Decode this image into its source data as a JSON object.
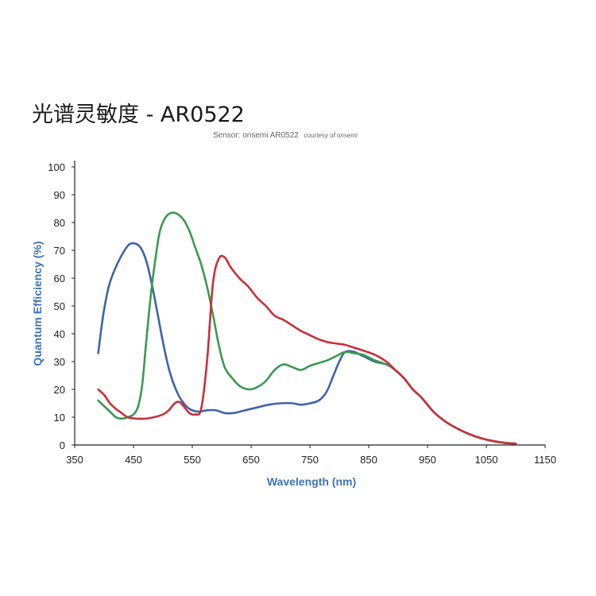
{
  "title": "光谱灵敏度 - AR0522",
  "subtitle": "Sensor: onsemi AR0522",
  "credit": "courtesy of onsemi",
  "chart_data": {
    "type": "line",
    "xlabel": "Wavelength (nm)",
    "ylabel": "Quantum Efficiency (%)",
    "xlim": [
      350,
      1150
    ],
    "ylim": [
      0,
      100
    ],
    "xticks": [
      350,
      450,
      550,
      650,
      750,
      850,
      950,
      1050,
      1150
    ],
    "yticks": [
      0,
      10,
      20,
      30,
      40,
      50,
      60,
      70,
      80,
      90,
      100
    ],
    "grid": false,
    "axis_label_color": "#3d73b4",
    "series": [
      {
        "color": "#3f63a8",
        "points": [
          [
            390,
            33
          ],
          [
            398,
            46
          ],
          [
            408,
            57
          ],
          [
            420,
            64
          ],
          [
            432,
            69
          ],
          [
            442,
            72
          ],
          [
            452,
            72.5
          ],
          [
            462,
            71
          ],
          [
            472,
            66
          ],
          [
            482,
            57
          ],
          [
            492,
            46
          ],
          [
            502,
            35
          ],
          [
            512,
            26
          ],
          [
            522,
            20
          ],
          [
            532,
            16
          ],
          [
            545,
            13
          ],
          [
            560,
            12
          ],
          [
            575,
            12.5
          ],
          [
            590,
            12.5
          ],
          [
            605,
            11.5
          ],
          [
            620,
            11.5
          ],
          [
            640,
            12.5
          ],
          [
            660,
            13.5
          ],
          [
            680,
            14.5
          ],
          [
            700,
            15
          ],
          [
            720,
            15
          ],
          [
            735,
            14.5
          ],
          [
            750,
            15
          ],
          [
            765,
            16
          ],
          [
            778,
            19
          ],
          [
            790,
            25
          ],
          [
            800,
            30
          ],
          [
            810,
            33.5
          ],
          [
            825,
            33.5
          ],
          [
            840,
            32
          ],
          [
            860,
            30
          ],
          [
            880,
            29
          ],
          [
            895,
            27
          ],
          [
            910,
            24
          ],
          [
            925,
            20
          ],
          [
            940,
            17
          ],
          [
            960,
            12
          ],
          [
            980,
            8.5
          ],
          [
            1000,
            6
          ],
          [
            1020,
            4
          ],
          [
            1040,
            2.5
          ],
          [
            1060,
            1.5
          ],
          [
            1080,
            0.8
          ],
          [
            1100,
            0.5
          ]
        ]
      },
      {
        "color": "#3a9a50",
        "points": [
          [
            390,
            16
          ],
          [
            400,
            14
          ],
          [
            410,
            12
          ],
          [
            420,
            10
          ],
          [
            430,
            9.5
          ],
          [
            440,
            10
          ],
          [
            450,
            11
          ],
          [
            458,
            14
          ],
          [
            465,
            22
          ],
          [
            472,
            38
          ],
          [
            480,
            55
          ],
          [
            488,
            68
          ],
          [
            495,
            77
          ],
          [
            505,
            82
          ],
          [
            515,
            83.5
          ],
          [
            525,
            83
          ],
          [
            535,
            81
          ],
          [
            545,
            77
          ],
          [
            555,
            71
          ],
          [
            565,
            65
          ],
          [
            575,
            57
          ],
          [
            585,
            47
          ],
          [
            595,
            36
          ],
          [
            605,
            28
          ],
          [
            618,
            24
          ],
          [
            632,
            21
          ],
          [
            648,
            20
          ],
          [
            662,
            21
          ],
          [
            675,
            23
          ],
          [
            690,
            27
          ],
          [
            705,
            29
          ],
          [
            720,
            28
          ],
          [
            735,
            27
          ],
          [
            750,
            28.5
          ],
          [
            765,
            29.5
          ],
          [
            780,
            30.5
          ],
          [
            795,
            32
          ],
          [
            810,
            33.5
          ],
          [
            825,
            33
          ],
          [
            840,
            32.5
          ],
          [
            860,
            30.5
          ],
          [
            880,
            29
          ],
          [
            895,
            27
          ],
          [
            910,
            24
          ],
          [
            925,
            20
          ],
          [
            940,
            17
          ],
          [
            960,
            12
          ],
          [
            980,
            8.5
          ],
          [
            1000,
            6
          ],
          [
            1020,
            4
          ],
          [
            1040,
            2.5
          ],
          [
            1060,
            1.5
          ],
          [
            1080,
            0.8
          ],
          [
            1100,
            0.5
          ]
        ]
      },
      {
        "color": "#c8303a",
        "points": [
          [
            390,
            20
          ],
          [
            400,
            18
          ],
          [
            410,
            15
          ],
          [
            420,
            13
          ],
          [
            430,
            11.5
          ],
          [
            440,
            10
          ],
          [
            455,
            9.5
          ],
          [
            470,
            9.5
          ],
          [
            485,
            10
          ],
          [
            500,
            11
          ],
          [
            510,
            12.5
          ],
          [
            520,
            15
          ],
          [
            528,
            15.5
          ],
          [
            535,
            14
          ],
          [
            545,
            11.5
          ],
          [
            555,
            11
          ],
          [
            565,
            13
          ],
          [
            575,
            30
          ],
          [
            585,
            58
          ],
          [
            595,
            67
          ],
          [
            605,
            67.5
          ],
          [
            615,
            64
          ],
          [
            630,
            60
          ],
          [
            645,
            57
          ],
          [
            660,
            53
          ],
          [
            675,
            50
          ],
          [
            690,
            46.5
          ],
          [
            705,
            45
          ],
          [
            720,
            43
          ],
          [
            735,
            41
          ],
          [
            750,
            39.5
          ],
          [
            765,
            38
          ],
          [
            780,
            37
          ],
          [
            795,
            36.5
          ],
          [
            810,
            36
          ],
          [
            825,
            35
          ],
          [
            840,
            34
          ],
          [
            860,
            32.5
          ],
          [
            880,
            30
          ],
          [
            895,
            27
          ],
          [
            910,
            24
          ],
          [
            925,
            20
          ],
          [
            940,
            17
          ],
          [
            960,
            12
          ],
          [
            980,
            8.5
          ],
          [
            1000,
            6
          ],
          [
            1020,
            4
          ],
          [
            1040,
            2.5
          ],
          [
            1060,
            1.5
          ],
          [
            1080,
            0.8
          ],
          [
            1100,
            0.5
          ]
        ]
      }
    ]
  }
}
